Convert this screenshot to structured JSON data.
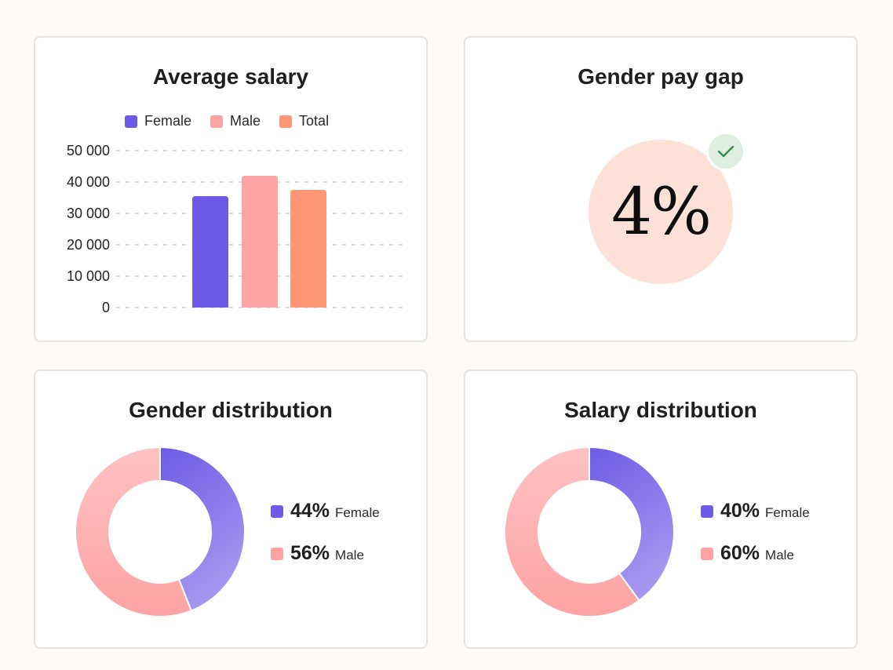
{
  "colors": {
    "female": "#6d5ae6",
    "male": "#fea3a3",
    "total": "#ff9776",
    "female_gradient_end": "#a597f0",
    "male_gradient_start": "#ffc2c2",
    "gap_circle": "#fde0d6",
    "check": "#3a8d43"
  },
  "avg_salary": {
    "title": "Average salary",
    "chart_data": {
      "type": "bar",
      "title": "Average salary",
      "categories": [
        "Female",
        "Male",
        "Total"
      ],
      "values": [
        35500,
        42000,
        37500
      ],
      "ylim": [
        0,
        50000
      ],
      "yticks": [
        0,
        10000,
        20000,
        30000,
        40000,
        50000
      ],
      "ytick_labels": [
        "0",
        "10 000",
        "20 000",
        "30 000",
        "40 000",
        "50 000"
      ],
      "grid": true,
      "legend": [
        {
          "name": "Female",
          "color": "#6d5ae6"
        },
        {
          "name": "Male",
          "color": "#fea3a3"
        },
        {
          "name": "Total",
          "color": "#ff9776"
        }
      ],
      "legend_position": "top"
    }
  },
  "pay_gap": {
    "title": "Gender pay gap",
    "value": "4%",
    "status_icon": "check-icon"
  },
  "gender_distribution": {
    "title": "Gender distribution",
    "chart_data": {
      "type": "pie",
      "title": "Gender distribution",
      "categories": [
        "Female",
        "Male"
      ],
      "values": [
        44,
        56
      ],
      "donut": true
    },
    "items": [
      {
        "pct": "44%",
        "label": "Female"
      },
      {
        "pct": "56%",
        "label": "Male"
      }
    ]
  },
  "salary_distribution": {
    "title": "Salary distribution",
    "chart_data": {
      "type": "pie",
      "title": "Salary distribution",
      "categories": [
        "Female",
        "Male"
      ],
      "values": [
        40,
        60
      ],
      "donut": true
    },
    "items": [
      {
        "pct": "40%",
        "label": "Female"
      },
      {
        "pct": "60%",
        "label": "Male"
      }
    ]
  }
}
